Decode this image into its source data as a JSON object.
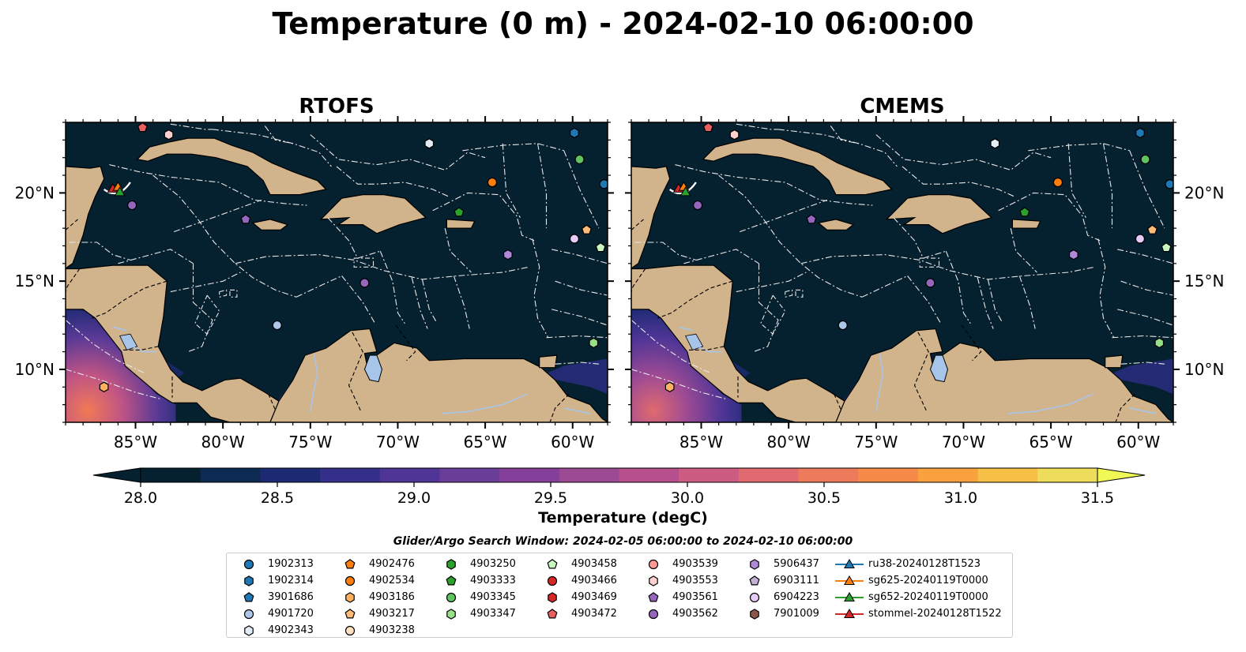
{
  "title": "Temperature (0 m) - 2024-02-10 06:00:00",
  "panels": [
    {
      "title": "RTOFS"
    },
    {
      "title": "CMEMS"
    }
  ],
  "map": {
    "lat_ticks": [
      {
        "value": 20,
        "label": "20°N"
      },
      {
        "value": 15,
        "label": "15°N"
      },
      {
        "value": 10,
        "label": "10°N"
      }
    ],
    "lon_ticks": [
      {
        "value": -85,
        "label": "85°W"
      },
      {
        "value": -80,
        "label": "80°W"
      },
      {
        "value": -75,
        "label": "75°W"
      },
      {
        "value": -70,
        "label": "70°W"
      },
      {
        "value": -65,
        "label": "65°W"
      },
      {
        "value": -60,
        "label": "60°W"
      }
    ],
    "extent": {
      "lon_min": -89,
      "lon_max": -58,
      "lat_min": 7,
      "lat_max": 24
    },
    "ocean_color": "#05202f",
    "land_color": "#d2b48c",
    "lake_color": "#a6c5e8"
  },
  "colorbar": {
    "label": "Temperature (degC)",
    "min": 28.0,
    "max": 31.5,
    "ticks": [
      "28.0",
      "28.5",
      "29.0",
      "29.5",
      "30.0",
      "30.5",
      "31.0",
      "31.5"
    ],
    "colors": [
      "#05202f",
      "#0d2a52",
      "#1d2a73",
      "#352f8c",
      "#4e3596",
      "#6a3d98",
      "#833f99",
      "#9c4a94",
      "#b5508c",
      "#cc5c82",
      "#e06a6f",
      "#ee7a5c",
      "#f68b49",
      "#f9a13c",
      "#f5c045",
      "#eedd5a"
    ],
    "over_color": "#f0f855"
  },
  "search_window": "Glider/Argo Search Window: 2024-02-05 06:00:00 to 2024-02-10 06:00:00",
  "legend": [
    {
      "label": "1902313",
      "marker": "circle",
      "color": "#1f77b4"
    },
    {
      "label": "1902314",
      "marker": "hexagon",
      "color": "#1f77b4"
    },
    {
      "label": "3901686",
      "marker": "pentagon",
      "color": "#1f77b4"
    },
    {
      "label": "4901720",
      "marker": "circle",
      "color": "#aec7e8"
    },
    {
      "label": "4902343",
      "marker": "hexagon",
      "color": "#e3edf8"
    },
    {
      "label": "4902476",
      "marker": "pentagon",
      "color": "#ff7f0e"
    },
    {
      "label": "4902534",
      "marker": "circle",
      "color": "#ff7f0e"
    },
    {
      "label": "4903186",
      "marker": "hexagon",
      "color": "#ffb060"
    },
    {
      "label": "4903217",
      "marker": "pentagon",
      "color": "#ffbb78"
    },
    {
      "label": "4903238",
      "marker": "circle",
      "color": "#ffe0c0"
    },
    {
      "label": "4903250",
      "marker": "hexagon",
      "color": "#2ca02c"
    },
    {
      "label": "4903333",
      "marker": "pentagon",
      "color": "#2ca02c"
    },
    {
      "label": "4903345",
      "marker": "circle",
      "color": "#5fc35f"
    },
    {
      "label": "4903347",
      "marker": "hexagon",
      "color": "#98df8a"
    },
    {
      "label": "4903458",
      "marker": "pentagon",
      "color": "#c8f5c0"
    },
    {
      "label": "4903466",
      "marker": "circle",
      "color": "#d62728"
    },
    {
      "label": "4903469",
      "marker": "hexagon",
      "color": "#d62728"
    },
    {
      "label": "4903472",
      "marker": "pentagon",
      "color": "#e8605f"
    },
    {
      "label": "4903539",
      "marker": "circle",
      "color": "#ff9896"
    },
    {
      "label": "4903553",
      "marker": "hexagon",
      "color": "#ffd0d0"
    },
    {
      "label": "4903561",
      "marker": "pentagon",
      "color": "#9467bd"
    },
    {
      "label": "4903562",
      "marker": "circle",
      "color": "#9467bd"
    },
    {
      "label": "5906437",
      "marker": "hexagon",
      "color": "#b08ad6"
    },
    {
      "label": "6903111",
      "marker": "pentagon",
      "color": "#c5b0d5"
    },
    {
      "label": "6904223",
      "marker": "circle",
      "color": "#e8ccf8"
    },
    {
      "label": "7901009",
      "marker": "hexagon",
      "color": "#8c564b"
    },
    {
      "label": "ru38-20240128T1523",
      "marker": "triangle-line",
      "color": "#1f77b4"
    },
    {
      "label": "sg625-20240119T0000",
      "marker": "triangle-line",
      "color": "#ff7f0e"
    },
    {
      "label": "sg652-20240119T0000",
      "marker": "triangle-line",
      "color": "#2ca02c"
    },
    {
      "label": "stommel-20240128T1522",
      "marker": "triangle-line",
      "color": "#d62728"
    }
  ],
  "floats": [
    {
      "marker": "pentagon",
      "color": "#e8605f",
      "lon": -84.6,
      "lat": 23.7
    },
    {
      "marker": "hexagon",
      "color": "#ffd0d0",
      "lon": -83.1,
      "lat": 23.3
    },
    {
      "marker": "hexagon",
      "color": "#e3edf8",
      "lon": -68.2,
      "lat": 22.8
    },
    {
      "marker": "hexagon",
      "color": "#1f77b4",
      "lon": -59.9,
      "lat": 23.4
    },
    {
      "marker": "circle",
      "color": "#5fc35f",
      "lon": -59.6,
      "lat": 21.9
    },
    {
      "marker": "circle",
      "color": "#1f77b4",
      "lon": -58.2,
      "lat": 20.5
    },
    {
      "marker": "circle",
      "color": "#ff7f0e",
      "lon": -64.6,
      "lat": 20.6
    },
    {
      "marker": "circle",
      "color": "#9467bd",
      "lon": -85.2,
      "lat": 19.3
    },
    {
      "marker": "pentagon",
      "color": "#9467bd",
      "lon": -78.7,
      "lat": 18.5
    },
    {
      "marker": "pentagon",
      "color": "#2ca02c",
      "lon": -66.5,
      "lat": 18.9
    },
    {
      "marker": "circle",
      "color": "#e8ccf8",
      "lon": -59.9,
      "lat": 17.4
    },
    {
      "marker": "pentagon",
      "color": "#ffbb78",
      "lon": -59.2,
      "lat": 17.9
    },
    {
      "marker": "pentagon",
      "color": "#c8f5c0",
      "lon": -58.4,
      "lat": 16.9
    },
    {
      "marker": "hexagon",
      "color": "#b08ad6",
      "lon": -63.7,
      "lat": 16.5
    },
    {
      "marker": "circle",
      "color": "#9467bd",
      "lon": -71.9,
      "lat": 14.9
    },
    {
      "marker": "circle",
      "color": "#aec7e8",
      "lon": -76.9,
      "lat": 12.5
    },
    {
      "marker": "hexagon",
      "color": "#98df8a",
      "lon": -58.8,
      "lat": 11.5
    },
    {
      "marker": "hexagon",
      "color": "#ffb060",
      "lon": -86.8,
      "lat": 9.0
    }
  ],
  "gliders": [
    {
      "color": "#d62728",
      "lon": -86.3,
      "lat": 20.2
    },
    {
      "color": "#ff7f0e",
      "lon": -86.0,
      "lat": 20.3
    },
    {
      "color": "#2ca02c",
      "lon": -85.9,
      "lat": 20.0
    }
  ]
}
